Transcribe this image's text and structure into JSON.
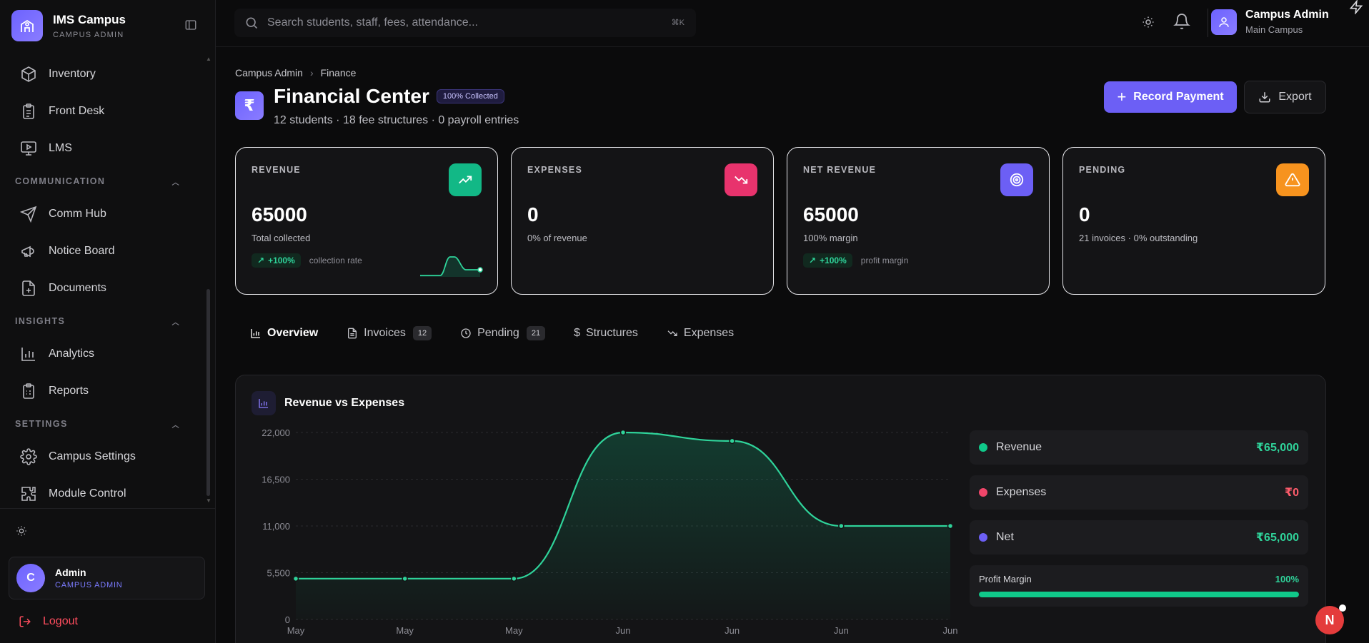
{
  "app": {
    "title": "IMS Campus",
    "subtitle": "CAMPUS ADMIN"
  },
  "sidebar": {
    "items_top": [
      {
        "label": "Inventory",
        "icon": "box-icon"
      },
      {
        "label": "Front Desk",
        "icon": "clipboard-icon"
      },
      {
        "label": "LMS",
        "icon": "monitor-play-icon"
      }
    ],
    "sections": [
      {
        "title": "COMMUNICATION",
        "items": [
          {
            "label": "Comm Hub",
            "icon": "send-icon"
          },
          {
            "label": "Notice Board",
            "icon": "megaphone-icon"
          },
          {
            "label": "Documents",
            "icon": "file-plus-icon"
          }
        ]
      },
      {
        "title": "INSIGHTS",
        "items": [
          {
            "label": "Analytics",
            "icon": "bar-chart-icon"
          },
          {
            "label": "Reports",
            "icon": "report-icon"
          }
        ]
      },
      {
        "title": "SETTINGS",
        "items": [
          {
            "label": "Campus Settings",
            "icon": "gear-icon"
          },
          {
            "label": "Module Control",
            "icon": "puzzle-icon"
          }
        ]
      }
    ],
    "user": {
      "initial": "C",
      "name": "Admin",
      "role": "CAMPUS ADMIN"
    },
    "logout": "Logout"
  },
  "topbar": {
    "search_placeholder": "Search students, staff, fees, attendance...",
    "search_shortcut": "⌘K",
    "user_name": "Campus Admin",
    "user_campus": "Main Campus"
  },
  "breadcrumb": [
    "Campus Admin",
    "Finance"
  ],
  "page": {
    "title": "Financial Center",
    "badge": "100% Collected",
    "subtitle": "12 students · 18 fee structures · 0 payroll entries",
    "icon_glyph": "₹",
    "primary_button": "Record Payment",
    "export_button": "Export"
  },
  "cards": [
    {
      "label": "REVENUE",
      "value": "65000",
      "desc": "Total collected",
      "pill": "+100%",
      "pill_note": "collection rate",
      "icon_color": "#12b886"
    },
    {
      "label": "EXPENSES",
      "value": "0",
      "desc": "0% of revenue",
      "icon_color": "#e8336d"
    },
    {
      "label": "NET REVENUE",
      "value": "65000",
      "desc": "100% margin",
      "pill": "+100%",
      "pill_note": "profit margin",
      "icon_color": "#6c5ff5"
    },
    {
      "label": "PENDING",
      "value": "0",
      "desc": "21 invoices · 0% outstanding",
      "icon_color": "#f7931e"
    }
  ],
  "tabs": [
    {
      "label": "Overview",
      "active": true
    },
    {
      "label": "Invoices",
      "count": "12"
    },
    {
      "label": "Pending",
      "count": "21"
    },
    {
      "label": "Structures"
    },
    {
      "label": "Expenses"
    }
  ],
  "chart_panel": {
    "title": "Revenue vs Expenses"
  },
  "chart_data": {
    "type": "area",
    "title": "Revenue vs Expenses",
    "x": [
      "May",
      "May",
      "May",
      "Jun",
      "Jun",
      "Jun",
      "Jun"
    ],
    "series": [
      {
        "name": "Revenue",
        "values": [
          4800,
          4800,
          4800,
          22000,
          21000,
          11000,
          11000
        ],
        "color": "#2fd39a"
      }
    ],
    "ylim": [
      0,
      22000
    ],
    "yticks": [
      "0",
      "5,500",
      "11,000",
      "16,500",
      "22,000"
    ],
    "grid": true
  },
  "legend": [
    {
      "label": "Revenue",
      "value": "₹65,000",
      "dot": "#10c98a",
      "value_color": "#2fd39a"
    },
    {
      "label": "Expenses",
      "value": "₹0",
      "dot": "#f0466a",
      "value_color": "#ff5c6c"
    },
    {
      "label": "Net",
      "value": "₹65,000",
      "dot": "#6c5ff5",
      "value_color": "#2fd39a"
    }
  ],
  "profit_margin": {
    "label": "Profit Margin",
    "value": "100%",
    "fraction": 1.0
  },
  "fab": {
    "label": "N"
  }
}
